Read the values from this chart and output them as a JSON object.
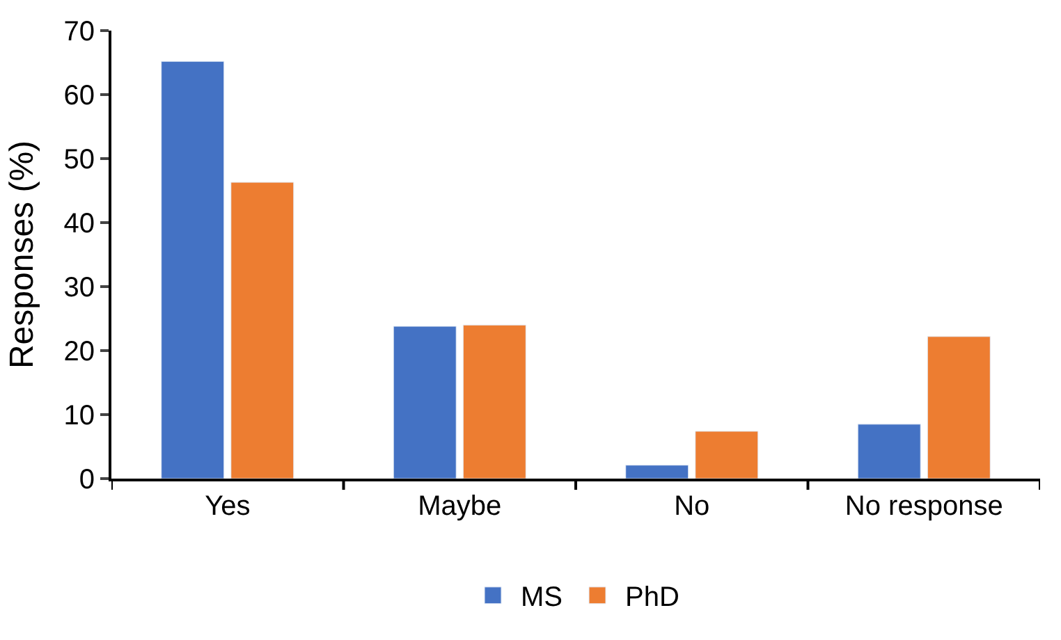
{
  "chart_data": {
    "type": "bar",
    "ylabel": "Responses (%)",
    "categories": [
      "Yes",
      "Maybe",
      "No",
      "No response"
    ],
    "series": [
      {
        "name": "MS",
        "color": "#4472c4",
        "values": [
          65.2,
          23.8,
          2.1,
          8.5
        ]
      },
      {
        "name": "PhD",
        "color": "#ed7d31",
        "values": [
          46.3,
          24.0,
          7.4,
          22.2
        ]
      }
    ],
    "ylim": [
      0,
      70
    ],
    "yticks": [
      0,
      10,
      20,
      30,
      40,
      50,
      60,
      70
    ],
    "legend": "bottom"
  }
}
